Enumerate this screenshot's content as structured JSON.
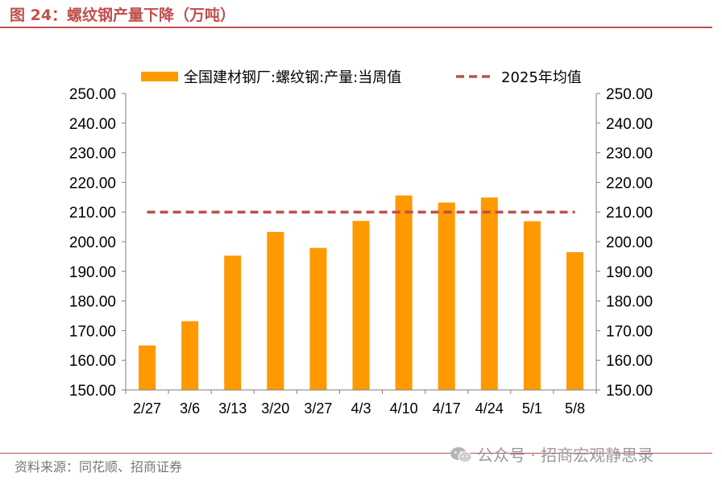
{
  "figure": {
    "title": "图 24：螺纹钢产量下降（万吨）",
    "source": "资料来源：同花顺、招商证券",
    "watermark": "公众号 · 招商宏观静思录"
  },
  "colors": {
    "bar": "#ff9900",
    "dashed_line": "#c0504d",
    "accent": "#c0504d",
    "axis": "#7f7f7f",
    "text": "#000000"
  },
  "chart_data": {
    "type": "bar",
    "categories": [
      "2/27",
      "3/6",
      "3/13",
      "3/20",
      "3/27",
      "4/3",
      "4/10",
      "4/17",
      "4/24",
      "5/1",
      "5/8"
    ],
    "series": [
      {
        "name": "全国建材钢厂:螺纹钢:产量:当周值",
        "type": "bar",
        "values": [
          165.0,
          173.2,
          195.3,
          203.3,
          197.9,
          207.0,
          215.6,
          213.2,
          214.9,
          206.9,
          196.5
        ]
      },
      {
        "name": "2025年均值",
        "type": "line",
        "style": "dashed",
        "values": [
          210.0,
          210.0,
          210.0,
          210.0,
          210.0,
          210.0,
          210.0,
          210.0,
          210.0,
          210.0,
          210.0
        ]
      }
    ],
    "ylim": [
      150,
      250
    ],
    "yticks": [
      "150.00",
      "160.00",
      "170.00",
      "180.00",
      "190.00",
      "200.00",
      "210.00",
      "220.00",
      "230.00",
      "240.00",
      "250.00"
    ],
    "y2ticks": [
      "150.00",
      "160.00",
      "170.00",
      "180.00",
      "190.00",
      "200.00",
      "210.00",
      "220.00",
      "230.00",
      "240.00",
      "250.00"
    ],
    "legend_position": "top",
    "grid": false
  }
}
